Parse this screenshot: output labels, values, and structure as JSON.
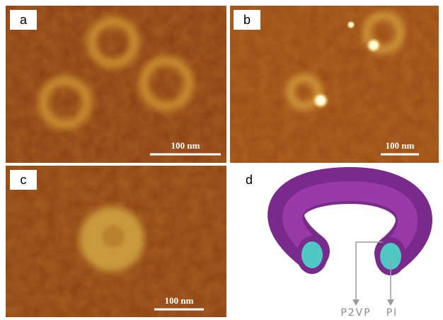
{
  "panels": [
    {
      "label": "a",
      "scale_bar": "100 nm"
    },
    {
      "label": "b",
      "scale_bar": "100 nm"
    },
    {
      "label": "c",
      "scale_bar": "100 nm"
    },
    {
      "label": "d"
    }
  ],
  "schematic": {
    "labels": [
      "P2VP",
      "PI"
    ]
  }
}
